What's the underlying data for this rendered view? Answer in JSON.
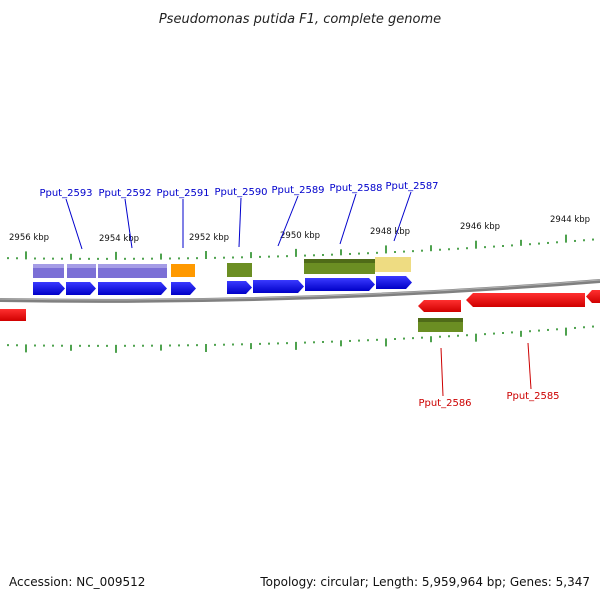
{
  "title": "Pseudomonas putida F1, complete genome",
  "footer": {
    "accession": "Accession: NC_009512",
    "summary": "Topology: circular; Length: 5,959,964 bp; Genes: 5,347"
  },
  "ruler_labels": [
    "2956 kbp",
    "2954 kbp",
    "2952 kbp",
    "2950 kbp",
    "2948 kbp",
    "2946 kbp",
    "2944 kbp"
  ],
  "gene_labels_forward": [
    "Pput_2593",
    "Pput_2592",
    "Pput_2591",
    "Pput_2590",
    "Pput_2589",
    "Pput_2588",
    "Pput_2587"
  ],
  "gene_labels_reverse": [
    "Pput_2586",
    "Pput_2585"
  ],
  "colors": {
    "forward_gene": "#0000ee",
    "reverse_gene": "#ee0000",
    "forward_label": "#0000cc",
    "reverse_label": "#cc0000",
    "cds_purple": "#7b6fd6",
    "cds_orange": "#ff9900",
    "cds_olive": "#6b8e23",
    "cds_khaki": "#eedc82",
    "backbone": "#808080",
    "tick": "#228b22"
  }
}
